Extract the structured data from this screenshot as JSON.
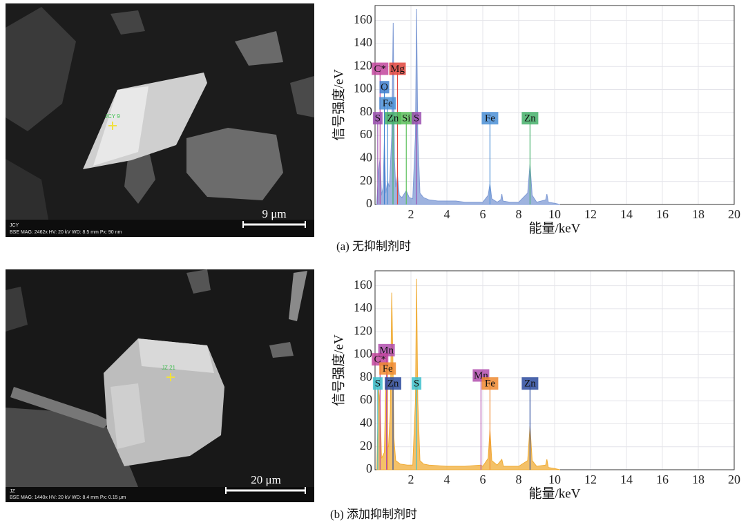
{
  "chart_data": [
    {
      "type": "area",
      "ylabel": "信号强度/eV",
      "xlabel": "能量/keV",
      "caption": "(a) 无抑制剂时",
      "xlim": [
        0,
        20
      ],
      "ylim": [
        0,
        173
      ],
      "xticks": [
        2,
        4,
        6,
        8,
        10,
        12,
        14,
        16,
        18,
        20
      ],
      "yticks": [
        0,
        20,
        40,
        60,
        80,
        100,
        120,
        140,
        160
      ],
      "grid": true,
      "color": "#7e9ad4",
      "x": [
        0.1,
        0.2,
        0.28,
        0.36,
        0.45,
        0.52,
        0.6,
        0.7,
        0.8,
        0.93,
        1.01,
        1.08,
        1.15,
        1.25,
        1.35,
        1.5,
        1.74,
        1.9,
        2.1,
        2.25,
        2.31,
        2.38,
        2.5,
        2.7,
        3.0,
        3.5,
        4.0,
        4.5,
        5.0,
        5.5,
        6.0,
        6.3,
        6.4,
        6.5,
        6.8,
        7.0,
        7.06,
        7.12,
        7.5,
        8.0,
        8.5,
        8.63,
        8.75,
        9.0,
        9.5,
        9.57,
        9.65,
        10.0,
        10.3
      ],
      "values": [
        2,
        30,
        40,
        8,
        15,
        55,
        10,
        20,
        15,
        60,
        158,
        40,
        15,
        25,
        8,
        6,
        12,
        6,
        5,
        60,
        170,
        60,
        10,
        6,
        4,
        3,
        3,
        3,
        2,
        2,
        2,
        8,
        18,
        5,
        2,
        4,
        9,
        3,
        2,
        2,
        10,
        35,
        8,
        2,
        4,
        9,
        2,
        1,
        0
      ],
      "peaks": [
        {
          "label": "C*",
          "x": 0.28,
          "color": "#c2459c"
        },
        {
          "label": "Mg",
          "x": 1.25,
          "color": "#e0443c"
        },
        {
          "label": "O",
          "x": 0.52,
          "color": "#3f7fcf"
        },
        {
          "label": "Fe",
          "x": 0.7,
          "color": "#4a8fd6"
        },
        {
          "label": "S",
          "x": 0.15,
          "color": "#9b4fb0"
        },
        {
          "label": "Zn",
          "x": 1.0,
          "color": "#45b06a"
        },
        {
          "label": "Si",
          "x": 1.74,
          "color": "#5cc05c"
        },
        {
          "label": "S",
          "x": 2.31,
          "color": "#9b4fb0"
        },
        {
          "label": "Fe",
          "x": 6.4,
          "color": "#4a8fd6"
        },
        {
          "label": "Zn",
          "x": 8.63,
          "color": "#45b06a"
        }
      ],
      "image": {
        "label": "JCY",
        "info": "BSE   MAG: 2462x   HV: 20 kV   WD: 8.5 mm   Px: 90 nm",
        "scale": "9 μm",
        "point": "JCY 9"
      }
    },
    {
      "type": "area",
      "ylabel": "信号强度/eV",
      "xlabel": "能量/keV",
      "caption": "(b) 添加抑制剂时",
      "xlim": [
        0,
        20
      ],
      "ylim": [
        0,
        173
      ],
      "xticks": [
        2,
        4,
        6,
        8,
        10,
        12,
        14,
        16,
        18,
        20
      ],
      "yticks": [
        0,
        20,
        40,
        60,
        80,
        100,
        120,
        140,
        160
      ],
      "grid": true,
      "color": "#f0ac35",
      "x": [
        0.1,
        0.2,
        0.28,
        0.36,
        0.52,
        0.6,
        0.65,
        0.75,
        0.85,
        0.93,
        1.01,
        1.05,
        1.15,
        1.4,
        1.8,
        2.1,
        2.25,
        2.31,
        2.38,
        2.5,
        2.7,
        3.0,
        4.0,
        5.0,
        5.9,
        6.0,
        6.3,
        6.4,
        6.5,
        6.8,
        7.06,
        7.15,
        8.0,
        8.5,
        8.63,
        8.75,
        9.0,
        9.5,
        9.57,
        9.65,
        10.0,
        10.3
      ],
      "values": [
        2,
        70,
        55,
        10,
        15,
        75,
        20,
        20,
        50,
        154,
        80,
        28,
        8,
        5,
        4,
        4,
        60,
        166,
        60,
        8,
        5,
        4,
        3,
        3,
        4,
        3,
        10,
        35,
        8,
        4,
        9,
        3,
        3,
        8,
        38,
        8,
        3,
        4,
        9,
        2,
        1,
        0
      ],
      "peaks": [
        {
          "label": "Mn",
          "x": 0.64,
          "color": "#b14eae"
        },
        {
          "label": "C*",
          "x": 0.28,
          "color": "#c2459c"
        },
        {
          "label": "Fe",
          "x": 0.7,
          "color": "#f08a30"
        },
        {
          "label": "S",
          "x": 0.15,
          "color": "#3ec1cc"
        },
        {
          "label": "Zn",
          "x": 1.0,
          "color": "#2b4b9e"
        },
        {
          "label": "S",
          "x": 2.31,
          "color": "#3ec1cc"
        },
        {
          "label": "Mn",
          "x": 5.9,
          "color": "#b14eae"
        },
        {
          "label": "Fe",
          "x": 6.4,
          "color": "#f08a30"
        },
        {
          "label": "Zn",
          "x": 8.63,
          "color": "#2b4b9e"
        }
      ],
      "image": {
        "label": "JZ",
        "info": "BSE   MAG: 1440x   HV: 20 kV   WD: 8.4 mm   Px: 0.15 μm",
        "scale": "20 μm",
        "point": "JZ 21"
      }
    }
  ]
}
